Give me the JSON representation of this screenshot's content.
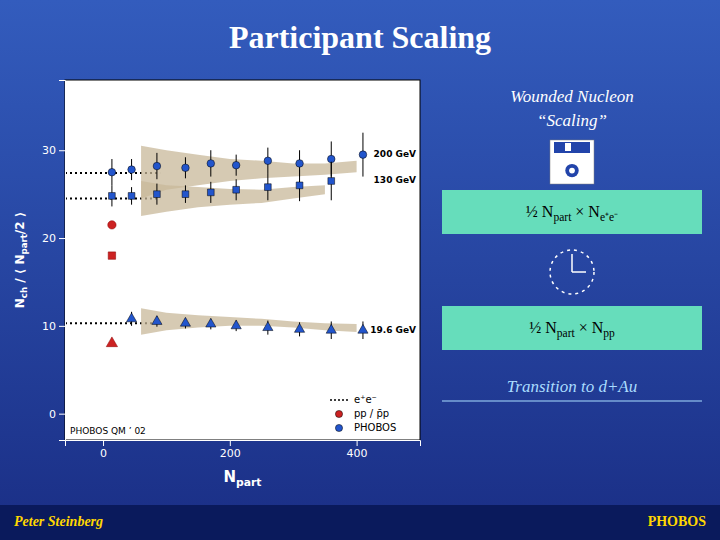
{
  "chart_data": {
    "type": "scatter",
    "title": "Participant Scaling",
    "x_label": "Npart",
    "y_label": "Nch / ⟨ Npart/2 ⟩",
    "xlim": [
      -60,
      500
    ],
    "ylim": [
      -3,
      38
    ],
    "xticks": [
      0,
      200,
      400
    ],
    "yticks": [
      0,
      10,
      20,
      30
    ],
    "legend": "lower right",
    "legend_entries": [
      {
        "name": "e⁺e⁻",
        "line_style": "dotted",
        "color": "#000000"
      },
      {
        "name": "pp / p̄p",
        "marker": "circle",
        "color": "#cc2222"
      },
      {
        "name": "PHOBOS",
        "marker": "circle",
        "color": "#2255cc"
      }
    ],
    "series": [
      {
        "name": "200 GeV",
        "marker": "circle",
        "color": "#2255cc",
        "x": [
          14,
          45,
          85,
          130,
          170,
          210,
          260,
          310,
          360,
          410
        ],
        "values": [
          27.5,
          27.8,
          28.2,
          28.0,
          28.5,
          28.3,
          28.8,
          28.5,
          29.0,
          29.5
        ],
        "errors": [
          1.5,
          1.2,
          1.5,
          1.2,
          1.5,
          1.2,
          1.5,
          1.5,
          2.0,
          2.5
        ],
        "ee_reference": {
          "value": 27.4,
          "x_end": 90,
          "line_style": "dotted",
          "color": "#000000"
        },
        "band": {
          "color": "#c8b89a",
          "x": [
            60,
            100,
            150,
            200,
            250,
            300,
            350,
            400
          ],
          "low": [
            24.5,
            25.5,
            26.0,
            26.5,
            26.8,
            27.0,
            27.2,
            27.5
          ],
          "high": [
            30.5,
            30.0,
            29.5,
            29.0,
            28.8,
            28.5,
            28.5,
            28.8
          ]
        },
        "pp": {
          "color": "#cc2222",
          "marker": "circle",
          "x": 14,
          "value": 21.5
        }
      },
      {
        "name": "130 GeV",
        "marker": "square",
        "color": "#2255cc",
        "x": [
          14,
          45,
          85,
          130,
          170,
          210,
          260,
          310,
          360
        ],
        "values": [
          24.8,
          24.8,
          25.0,
          25.0,
          25.2,
          25.5,
          25.8,
          26.0,
          26.5
        ],
        "errors": [
          1.2,
          1.0,
          1.2,
          1.0,
          1.2,
          1.2,
          1.5,
          1.8,
          2.2
        ],
        "ee_reference": {
          "value": 24.5,
          "x_end": 90,
          "line_style": "dotted",
          "color": "#000000"
        },
        "band": {
          "color": "#c8b89a",
          "x": [
            60,
            100,
            150,
            200,
            250,
            300,
            350
          ],
          "low": [
            22.5,
            23.0,
            23.5,
            23.8,
            24.0,
            24.5,
            25.0
          ],
          "high": [
            26.5,
            26.0,
            25.8,
            25.6,
            25.5,
            25.8,
            26.0
          ]
        },
        "pp": {
          "color": "#cc2222",
          "marker": "square",
          "x": 14,
          "value": 18.0
        }
      },
      {
        "name": "19.6 GeV",
        "marker": "triangle",
        "color": "#2255cc",
        "x": [
          45,
          85,
          130,
          170,
          210,
          260,
          310,
          360,
          410
        ],
        "values": [
          10.8,
          10.5,
          10.3,
          10.2,
          10.0,
          9.8,
          9.6,
          9.5,
          9.5
        ],
        "errors": [
          0.8,
          0.6,
          0.6,
          0.6,
          0.6,
          0.8,
          0.8,
          1.0,
          1.0
        ],
        "ee_reference": {
          "value": 10.3,
          "x_end": 90,
          "line_style": "dotted",
          "color": "#000000"
        },
        "band": {
          "color": "#c8b89a",
          "x": [
            60,
            100,
            150,
            200,
            250,
            300,
            350,
            400
          ],
          "low": [
            9.0,
            9.5,
            9.8,
            10.0,
            10.0,
            9.8,
            9.5,
            9.3
          ],
          "high": [
            12.0,
            11.5,
            11.2,
            11.0,
            10.8,
            10.5,
            10.3,
            10.2
          ]
        },
        "pp": {
          "color": "#cc2222",
          "marker": "triangle",
          "x": 14,
          "value": 8.0
        }
      }
    ],
    "annotations": {
      "plot_note": "PHOBOS QM ’ 02",
      "panel": [
        "Wounded Nucleon",
        "“Scaling”",
        "½ Npart × Ne⁺e⁻",
        "½ Npart × Npp",
        "Transition to d+Au"
      ],
      "footer": [
        "Peter Steinberg",
        "PHOBOS"
      ]
    }
  }
}
